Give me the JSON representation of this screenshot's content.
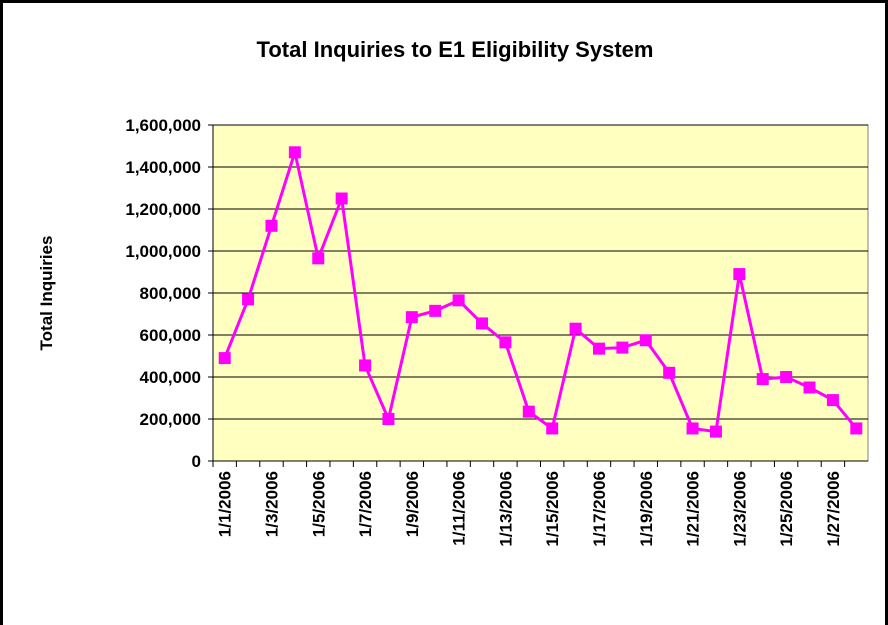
{
  "chart_data": {
    "type": "line",
    "title": "Total Inquiries to E1 Eligibility System",
    "ylabel": "Total Inquiries",
    "categories": [
      "1/1/2006",
      null,
      "1/3/2006",
      null,
      "1/5/2006",
      null,
      "1/7/2006",
      null,
      "1/9/2006",
      null,
      "1/11/2006",
      null,
      "1/13/2006",
      null,
      "1/15/2006",
      null,
      "1/17/2006",
      null,
      "1/19/2006",
      null,
      "1/21/2006",
      null,
      "1/23/2006",
      null,
      "1/25/2006",
      null,
      "1/27/2006",
      null
    ],
    "values": [
      490000,
      770000,
      1120000,
      1470000,
      965000,
      1250000,
      455000,
      200000,
      685000,
      715000,
      765000,
      655000,
      565000,
      235000,
      155000,
      630000,
      535000,
      540000,
      575000,
      420000,
      155000,
      140000,
      890000,
      390000,
      400000,
      350000,
      290000,
      155000
    ],
    "color": "#ff00ff",
    "ylim": [
      0,
      1600000
    ],
    "yticks": [
      0,
      {
        "value": 200000,
        "label": "200,000"
      },
      {
        "value": 400000,
        "label": "400,000"
      },
      {
        "value": 600000,
        "label": "600,000"
      },
      {
        "value": 800000,
        "label": "800,000"
      },
      {
        "value": 1000000,
        "label": "1,000,000"
      },
      {
        "value": 1200000,
        "label": "1,200,000"
      },
      {
        "value": 1400000,
        "label": "1,400,000"
      },
      {
        "value": 1600000,
        "label": "1,600,000"
      }
    ],
    "grid": true
  }
}
